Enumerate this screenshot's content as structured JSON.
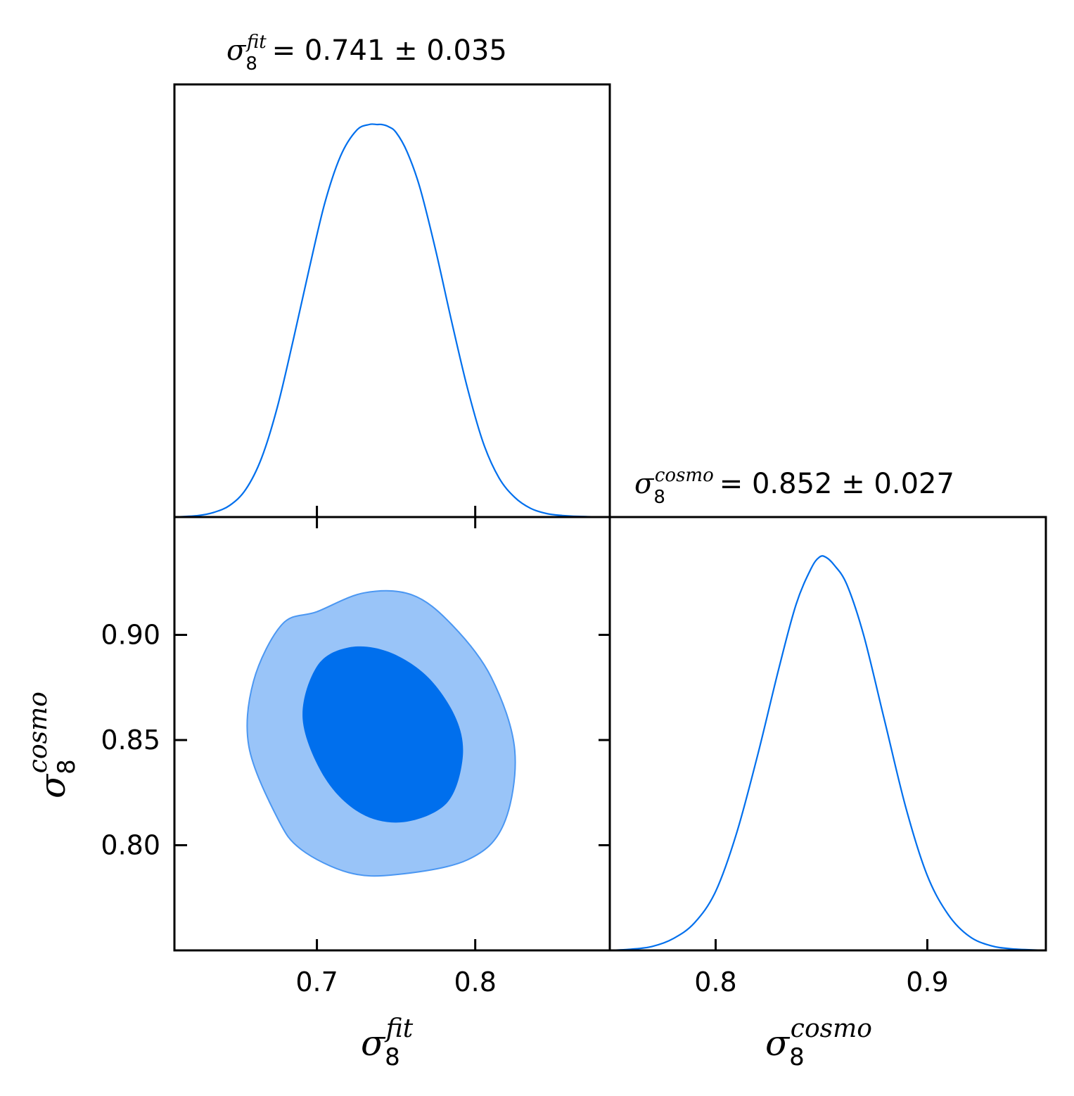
{
  "colors": {
    "line": "#006fed",
    "contour_inner": "#006fed",
    "contour_outer": "#99c4f8",
    "contour_outer_edge": "#4b97f2",
    "frame": "#000000"
  },
  "chart_data": [
    {
      "panel": "marginal-sigma8-fit",
      "type": "line",
      "title": {
        "symbol": "σ",
        "sub": "8",
        "sup": "fit",
        "text": "= 0.741 ± 0.035"
      },
      "xlim": [
        0.61,
        0.885
      ],
      "xticks": [
        0.7,
        0.8
      ],
      "x": [
        0.61,
        0.625,
        0.635,
        0.645,
        0.655,
        0.665,
        0.675,
        0.685,
        0.695,
        0.705,
        0.715,
        0.725,
        0.733,
        0.738,
        0.741,
        0.745,
        0.75,
        0.757,
        0.765,
        0.775,
        0.785,
        0.795,
        0.805,
        0.815,
        0.825,
        0.835,
        0.845,
        0.855,
        0.87,
        0.885
      ],
      "y": [
        0.0,
        0.004,
        0.012,
        0.03,
        0.07,
        0.15,
        0.28,
        0.45,
        0.63,
        0.8,
        0.92,
        0.985,
        1.0,
        1.0,
        1.0,
        0.995,
        0.98,
        0.93,
        0.84,
        0.68,
        0.5,
        0.33,
        0.19,
        0.1,
        0.05,
        0.022,
        0.009,
        0.004,
        0.001,
        0.0
      ]
    },
    {
      "panel": "marginal-sigma8-cosmo",
      "type": "line",
      "title": {
        "symbol": "σ",
        "sub": "8",
        "sup": "cosmo",
        "text": "= 0.852 ± 0.027"
      },
      "xlim": [
        0.75,
        0.956
      ],
      "xticks": [
        0.8,
        0.9
      ],
      "x": [
        0.75,
        0.76,
        0.77,
        0.78,
        0.79,
        0.8,
        0.81,
        0.82,
        0.83,
        0.838,
        0.845,
        0.849,
        0.852,
        0.856,
        0.862,
        0.87,
        0.88,
        0.89,
        0.9,
        0.91,
        0.92,
        0.93,
        0.94,
        0.956
      ],
      "y": [
        0.0,
        0.003,
        0.01,
        0.03,
        0.07,
        0.15,
        0.3,
        0.5,
        0.72,
        0.88,
        0.97,
        1.0,
        1.0,
        0.98,
        0.93,
        0.8,
        0.58,
        0.36,
        0.19,
        0.09,
        0.035,
        0.012,
        0.004,
        0.0
      ]
    },
    {
      "panel": "joint-2d",
      "type": "area",
      "xlim": [
        0.61,
        0.885
      ],
      "ylim": [
        0.75,
        0.956
      ],
      "xticks": [
        0.7,
        0.8
      ],
      "yticks": [
        0.8,
        0.85,
        0.9
      ],
      "ytick_labels": [
        "0.80",
        "0.85",
        "0.90"
      ],
      "contours": [
        {
          "level": "95%",
          "points": [
            [
              0.7,
              0.911
            ],
            [
              0.73,
              0.92
            ],
            [
              0.76,
              0.919
            ],
            [
              0.785,
              0.905
            ],
            [
              0.81,
              0.88
            ],
            [
              0.825,
              0.845
            ],
            [
              0.818,
              0.81
            ],
            [
              0.795,
              0.793
            ],
            [
              0.75,
              0.786
            ],
            [
              0.72,
              0.787
            ],
            [
              0.69,
              0.798
            ],
            [
              0.675,
              0.813
            ],
            [
              0.657,
              0.847
            ],
            [
              0.66,
              0.878
            ],
            [
              0.678,
              0.905
            ]
          ]
        },
        {
          "level": "68%",
          "points": [
            [
              0.72,
              0.894
            ],
            [
              0.745,
              0.892
            ],
            [
              0.77,
              0.88
            ],
            [
              0.788,
              0.86
            ],
            [
              0.792,
              0.841
            ],
            [
              0.782,
              0.82
            ],
            [
              0.755,
              0.811
            ],
            [
              0.728,
              0.815
            ],
            [
              0.705,
              0.832
            ],
            [
              0.691,
              0.86
            ],
            [
              0.7,
              0.885
            ]
          ]
        }
      ]
    }
  ],
  "labels": {
    "xlabel_left": {
      "symbol": "σ",
      "sub": "8",
      "sup": "fit"
    },
    "xlabel_right": {
      "symbol": "σ",
      "sub": "8",
      "sup": "cosmo"
    },
    "ylabel": {
      "symbol": "σ",
      "sub": "8",
      "sup": "cosmo"
    }
  }
}
